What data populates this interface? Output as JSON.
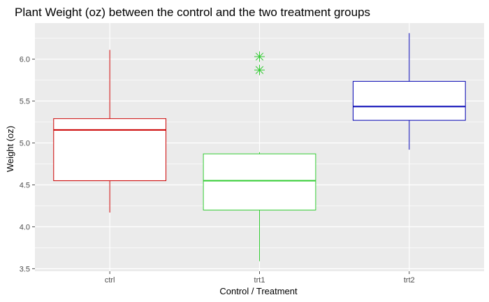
{
  "chart_data": {
    "type": "boxplot",
    "title": "Plant Weight (oz) between the control and the two treatment groups",
    "xlabel": "Control / Treatment",
    "ylabel": "Weight (oz)",
    "ylim": [
      3.47,
      6.43
    ],
    "yticks": [
      3.5,
      4.0,
      4.5,
      5.0,
      5.5,
      6.0
    ],
    "ytick_labels": [
      "3.5",
      "4.0",
      "4.5",
      "5.0",
      "5.5",
      "6.0"
    ],
    "grid": true,
    "legend": "none",
    "categories": [
      "ctrl",
      "trt1",
      "trt2"
    ],
    "boxes": [
      {
        "name": "ctrl",
        "color": "#cc0000",
        "whisker_low": 4.17,
        "q1": 4.55,
        "median": 5.155,
        "q3": 5.29,
        "whisker_high": 6.11,
        "outliers": []
      },
      {
        "name": "trt1",
        "color": "#33cc33",
        "whisker_low": 3.59,
        "q1": 4.2,
        "median": 4.55,
        "q3": 4.87,
        "whisker_high": 4.89,
        "outliers": [
          5.87,
          6.03
        ]
      },
      {
        "name": "trt2",
        "color": "#0000b3",
        "whisker_low": 4.92,
        "q1": 5.27,
        "median": 5.435,
        "q3": 5.735,
        "whisker_high": 6.31,
        "outliers": []
      }
    ],
    "colors": {
      "panel": "#ebebeb",
      "grid": "#ffffff",
      "box_fill": "#ffffff",
      "tick": "#4d4d4d"
    }
  }
}
